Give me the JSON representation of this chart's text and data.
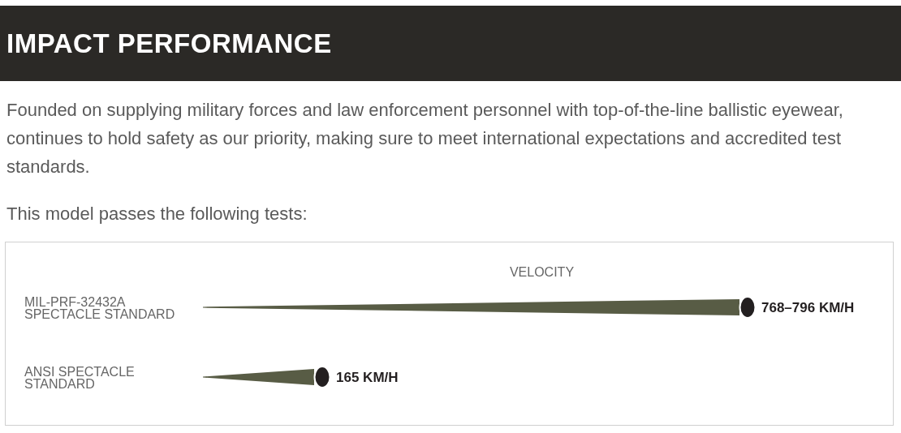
{
  "chart_data": {
    "type": "bar",
    "orientation": "horizontal",
    "title": "IMPACT PERFORMANCE",
    "subtitle": "Founded on supplying military forces and law enforcement personnel with top-of-the-line ballistic eyewear, continues to hold safety as our priority, making sure to meet international expectations and accredited test standards.",
    "annotations": [
      "This model passes the following tests:"
    ],
    "xlabel": "VELOCITY",
    "categories": [
      "MIL-PRF-32432A SPECTACLE STANDARD",
      "ANSI SPECTACLE STANDARD"
    ],
    "values": [
      796,
      165
    ],
    "value_labels": [
      "768–796 KM/H",
      "165 KM/H"
    ],
    "color": "#585c45"
  }
}
